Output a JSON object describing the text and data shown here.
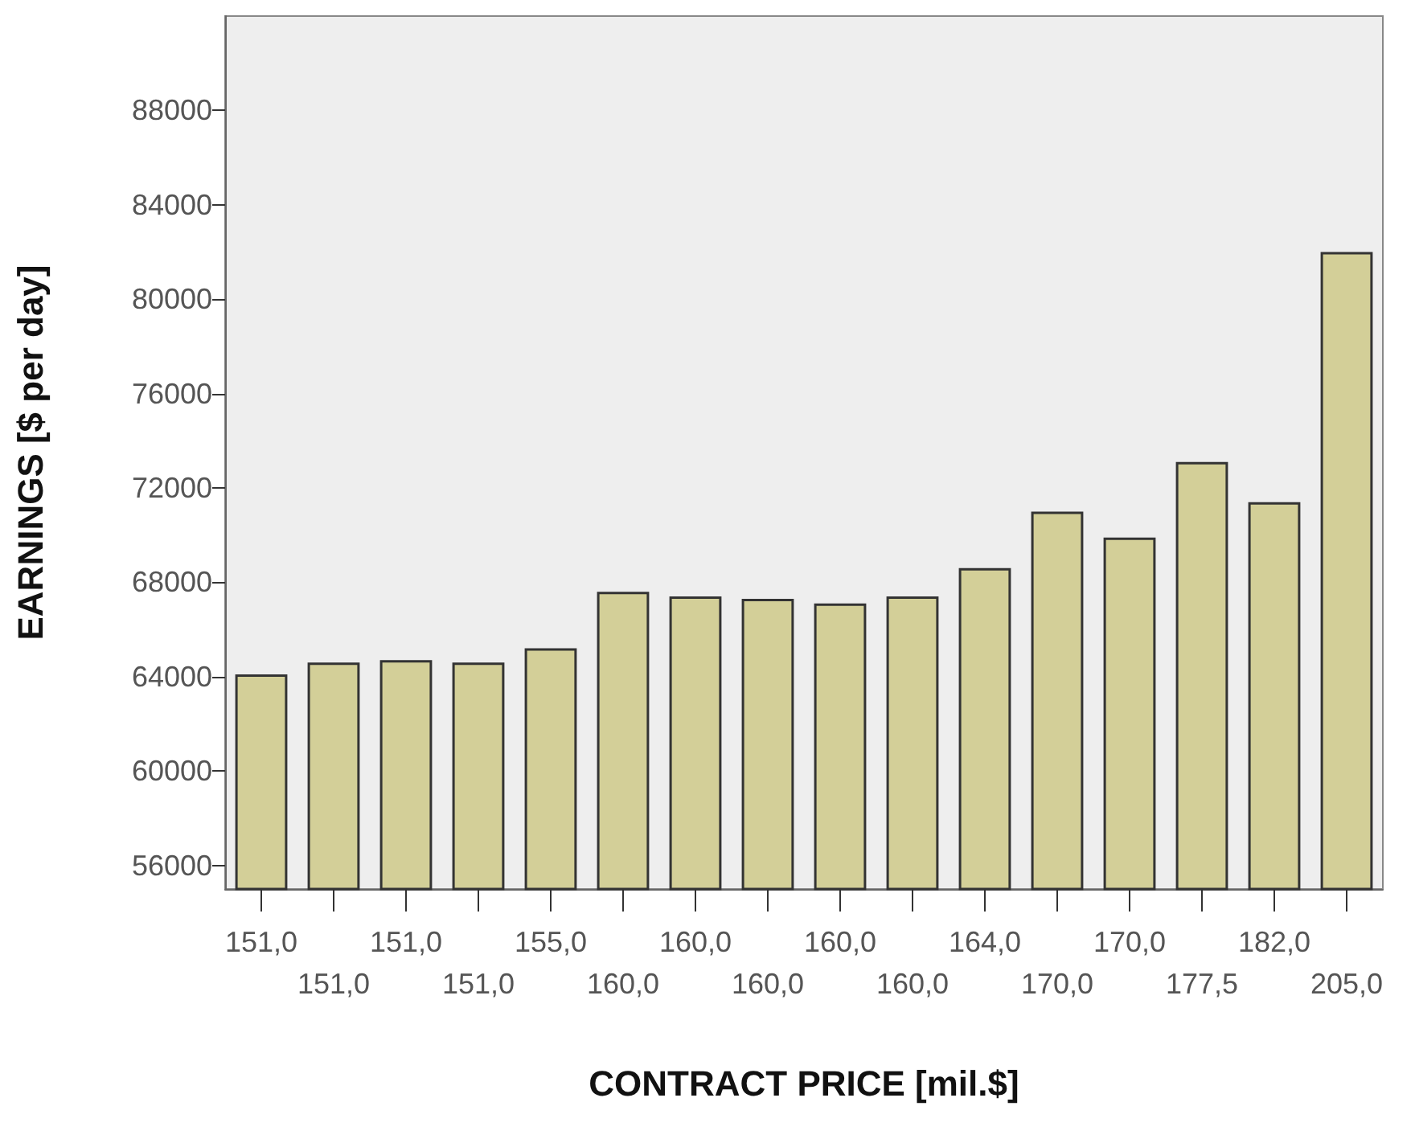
{
  "chart_data": {
    "type": "bar",
    "xlabel": "CONTRACT PRICE [mil.$]",
    "ylabel": "EARNINGS [$ per day]",
    "categories": [
      "151,0",
      "151,0",
      "151,0",
      "151,0",
      "155,0",
      "160,0",
      "160,0",
      "160,0",
      "160,0",
      "160,0",
      "164,0",
      "170,0",
      "170,0",
      "177,5",
      "182,0",
      "205,0"
    ],
    "values": [
      64100,
      64600,
      64700,
      64600,
      65200,
      67600,
      67400,
      67300,
      67100,
      67400,
      68600,
      71000,
      69900,
      73100,
      71400,
      82000
    ],
    "color": "#d3cf98",
    "ylim": [
      55000,
      92000
    ],
    "yticks": [
      56000,
      60000,
      64000,
      68000,
      72000,
      76000,
      80000,
      84000,
      88000
    ],
    "grid": false
  }
}
